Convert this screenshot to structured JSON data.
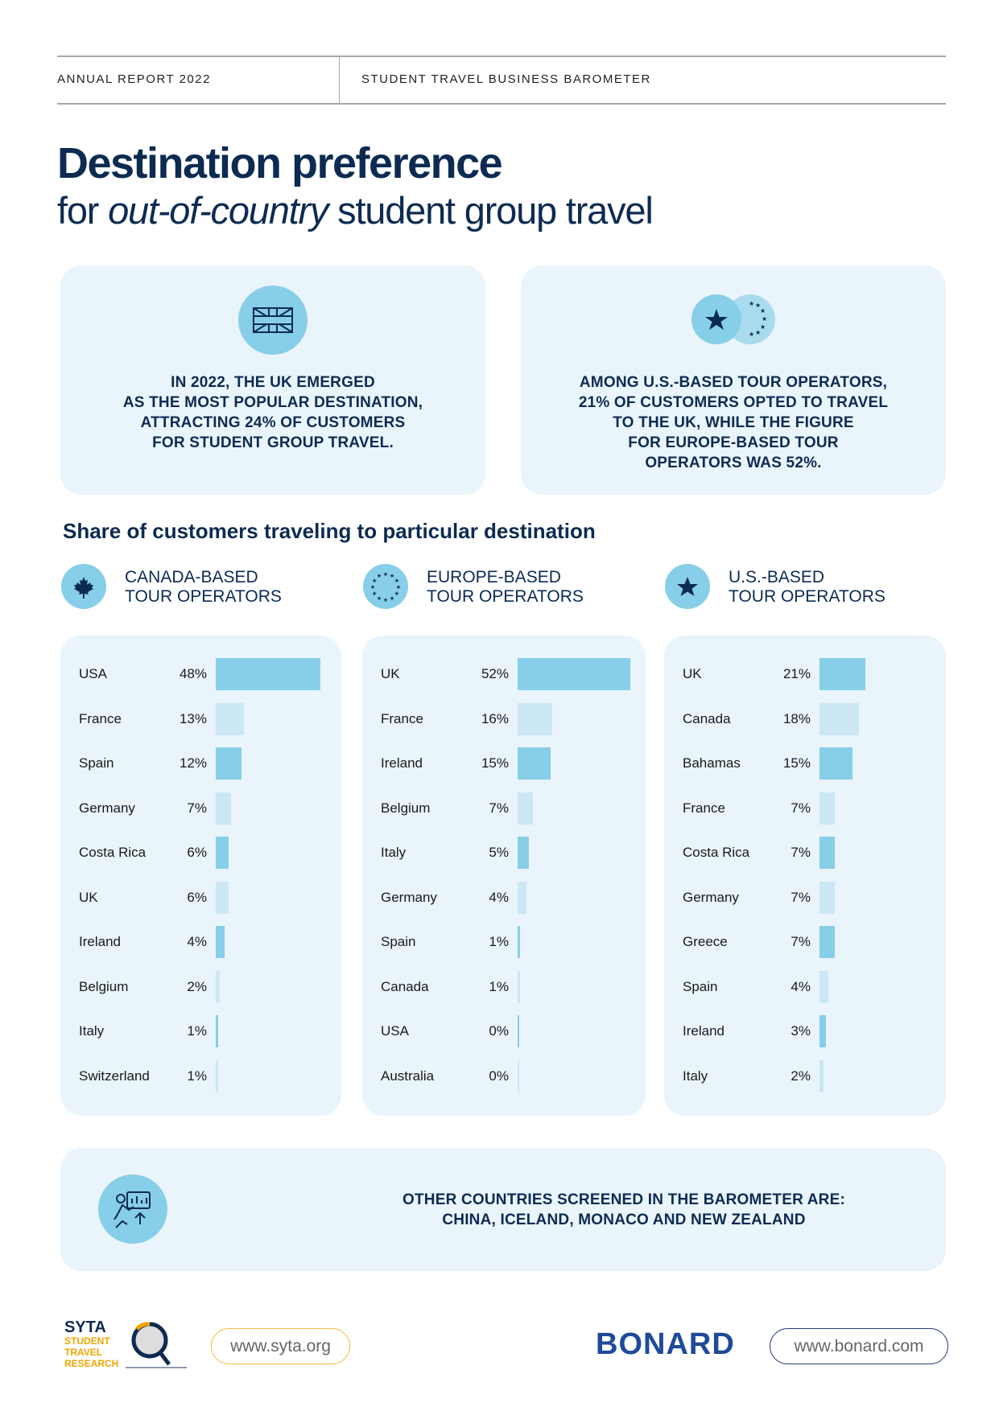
{
  "header": {
    "left": "ANNUAL REPORT 2022",
    "right": "STUDENT TRAVEL BUSINESS BAROMETER"
  },
  "title": "Destination preference",
  "subtitle": {
    "pre": "for ",
    "italic": "out-of-country",
    "post": " student group travel"
  },
  "info": [
    {
      "icon": "uk-flag-icon",
      "lines": [
        "In 2022, the UK emerged",
        "as the most popular destination,",
        "attracting 24% of customers",
        "for student group travel."
      ]
    },
    {
      "icon": "us-eu-star-icon",
      "lines": [
        "Among U.S.-based tour operators,",
        "21% of customers opted to travel",
        "to the UK, while the figure",
        "for Europe-based tour",
        "operators was 52%."
      ]
    }
  ],
  "section_title": "Share of customers traveling to particular destination",
  "colors": {
    "navy": "#0d2b52",
    "panel": "#eaf4fb",
    "bar_dark": "#87cee8",
    "bar_light": "#cbe7f4"
  },
  "chart_data": [
    {
      "type": "bar",
      "title": "CANADA-BASED TOUR OPERATORS",
      "title_lines": [
        "CANADA-BASED",
        "TOUR OPERATORS"
      ],
      "icon": "maple-leaf-icon",
      "categories": [
        "USA",
        "France",
        "Spain",
        "Germany",
        "Costa Rica",
        "UK",
        "Ireland",
        "Belgium",
        "Italy",
        "Switzerland"
      ],
      "values": [
        48,
        13,
        12,
        7,
        6,
        6,
        4,
        2,
        1,
        1
      ],
      "unit": "%"
    },
    {
      "type": "bar",
      "title": "EUROPE-BASED TOUR OPERATORS",
      "title_lines": [
        "EUROPE-BASED",
        "TOUR OPERATORS"
      ],
      "icon": "eu-stars-icon",
      "categories": [
        "UK",
        "France",
        "Ireland",
        "Belgium",
        "Italy",
        "Germany",
        "Spain",
        "Canada",
        "USA",
        "Australia"
      ],
      "values": [
        52,
        16,
        15,
        7,
        5,
        4,
        1,
        1,
        0,
        0
      ],
      "unit": "%"
    },
    {
      "type": "bar",
      "title": "U.S.-BASED TOUR OPERATORS",
      "title_lines": [
        "U.S.-BASED",
        "TOUR OPERATORS"
      ],
      "icon": "star-icon",
      "categories": [
        "UK",
        "Canada",
        "Bahamas",
        "France",
        "Costa Rica",
        "Germany",
        "Greece",
        "Spain",
        "Ireland",
        "Italy"
      ],
      "values": [
        21,
        18,
        15,
        7,
        7,
        7,
        7,
        4,
        3,
        2
      ],
      "unit": "%"
    }
  ],
  "other": {
    "lines": [
      "OTHER COUNTRIES SCREENED IN THE BAROMETER ARE:",
      "CHINA, ICELAND, MONACO AND NEW ZEALAND"
    ]
  },
  "footer": {
    "syta_logo": [
      "SYTA",
      "STUDENT",
      "TRAVEL",
      "RESEARCH"
    ],
    "syta_url": "www.syta.org",
    "bonard_logo": "BONARD",
    "bonard_url": "www.bonard.com"
  }
}
